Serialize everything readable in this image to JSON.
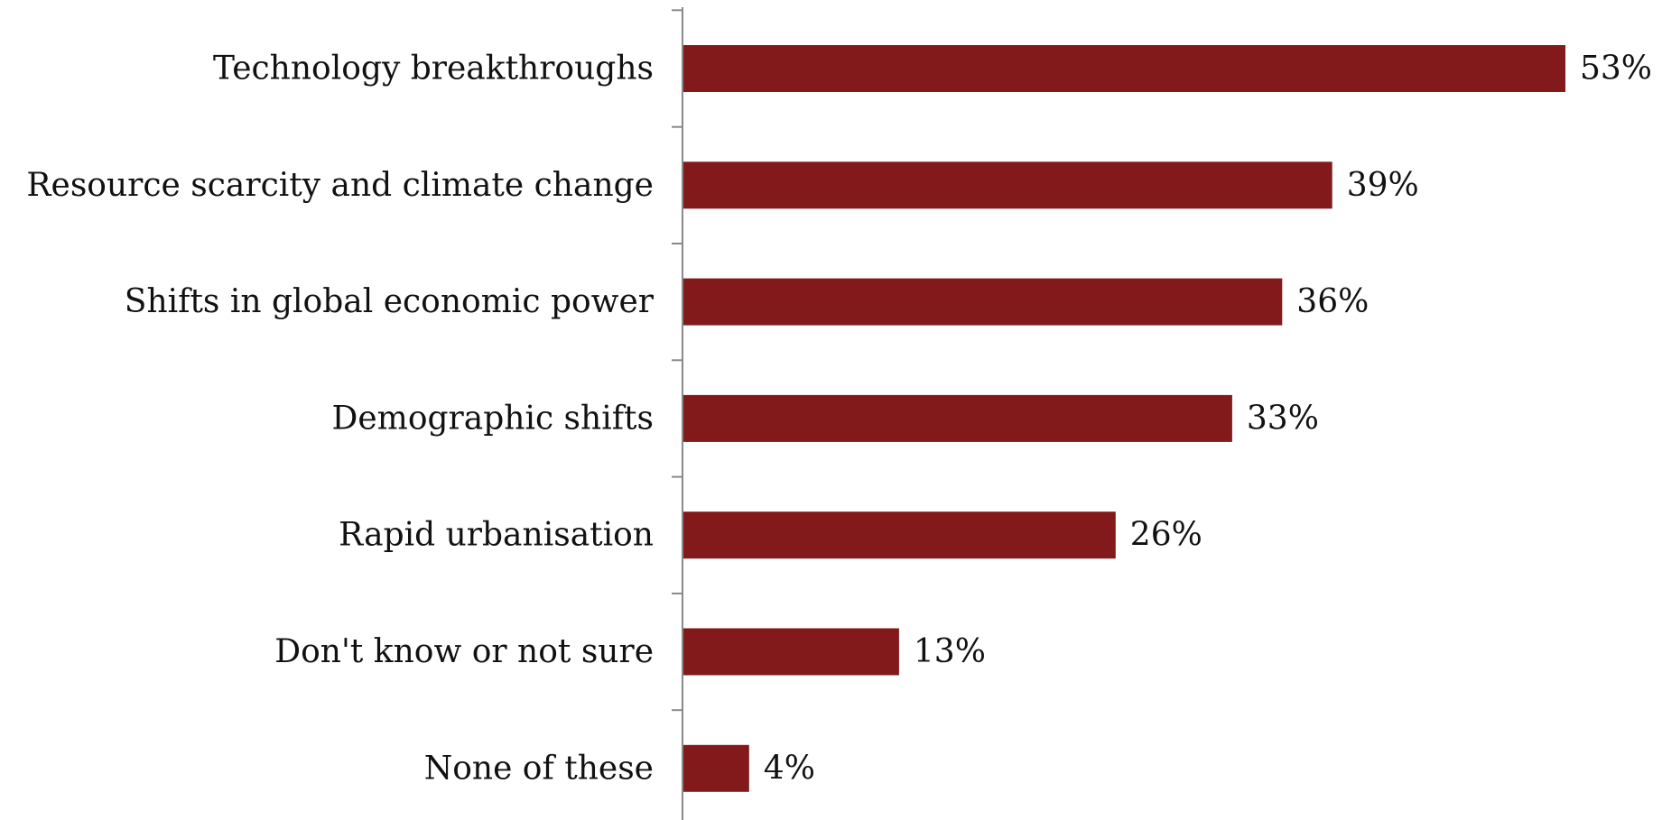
{
  "chart_data": {
    "type": "bar",
    "orientation": "horizontal",
    "categories": [
      "Technology breakthroughs",
      "Resource scarcity and climate change",
      "Shifts in global economic power",
      "Demographic shifts",
      "Rapid urbanisation",
      "Don't know or not sure",
      "None of these"
    ],
    "values": [
      53,
      39,
      36,
      33,
      26,
      13,
      4
    ],
    "value_labels": [
      "53%",
      "39%",
      "36%",
      "33%",
      "26%",
      "13%",
      "4%"
    ],
    "unit": "%",
    "xlim": [
      0,
      53
    ],
    "grid": false,
    "legend": "none",
    "bar_color": "#821a1c"
  }
}
